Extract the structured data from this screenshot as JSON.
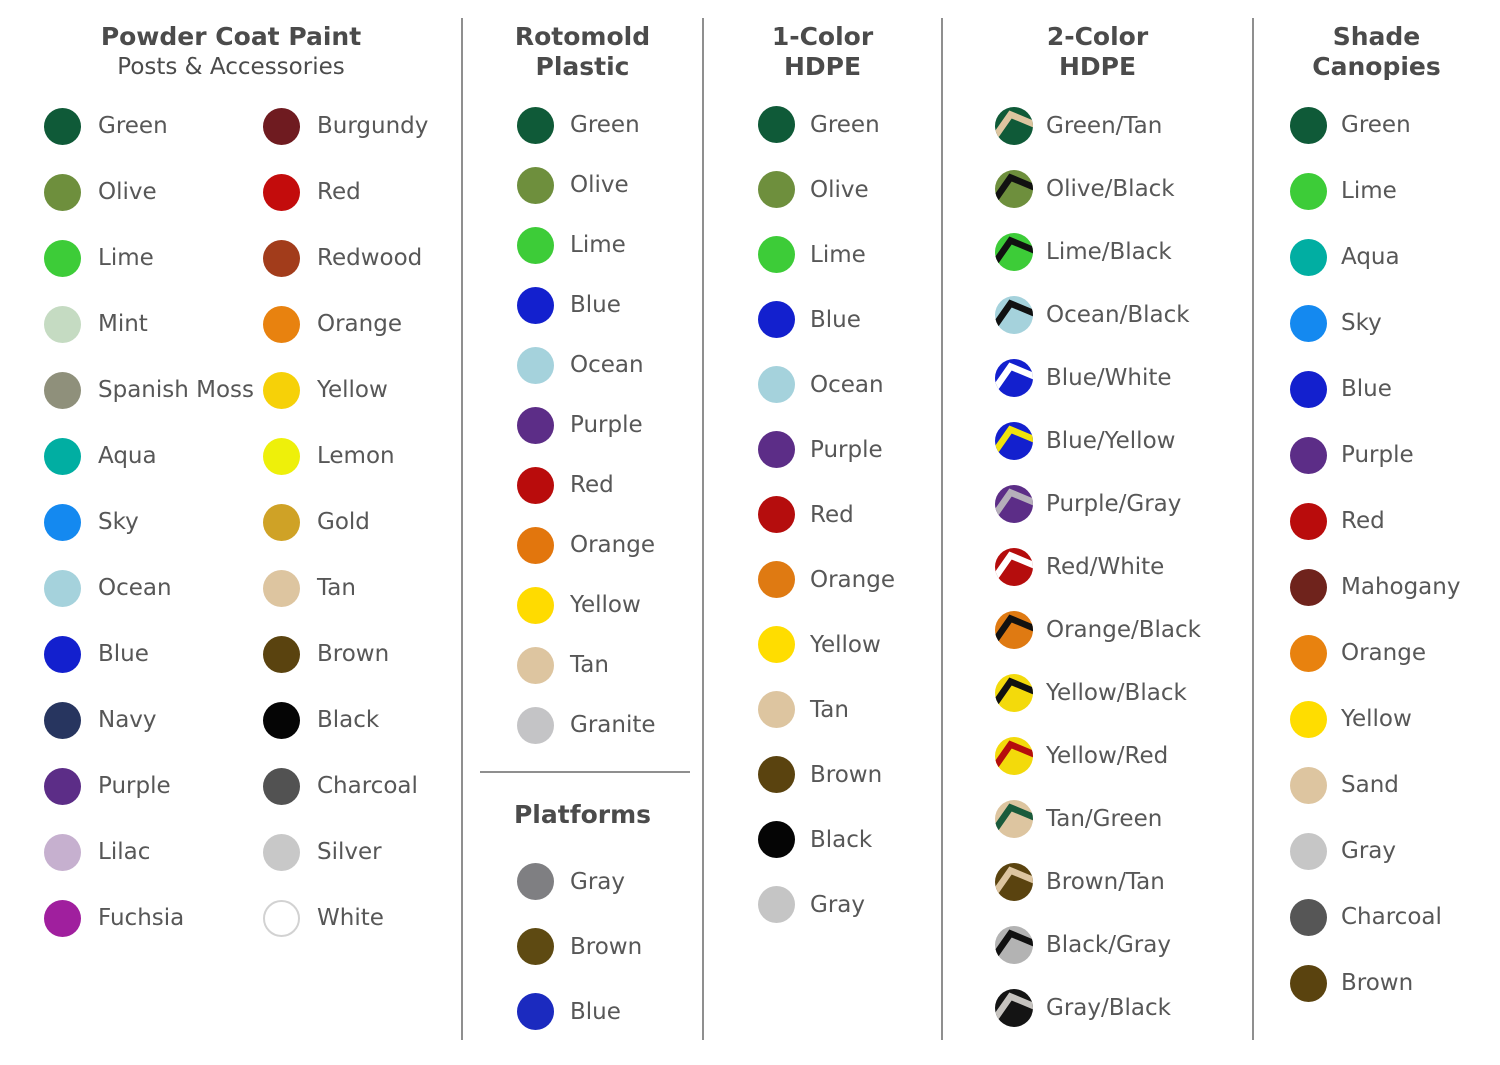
{
  "page": {
    "background": "#ffffff",
    "divider_color": "#8f8f8f",
    "heading_color": "#4b4b4b",
    "label_color": "#575757"
  },
  "sections": {
    "powder": {
      "h1": "Powder Coat Paint",
      "sub": "Posts & Accessories",
      "col_a": [
        {
          "label": "Green",
          "fill": "#0f5a38"
        },
        {
          "label": "Olive",
          "fill": "#6e8f3d"
        },
        {
          "label": "Lime",
          "fill": "#3dcc38"
        },
        {
          "label": "Mint",
          "fill": "#c5dbc2"
        },
        {
          "label": "Spanish Moss",
          "fill": "#8f907b"
        },
        {
          "label": "Aqua",
          "fill": "#01aea2"
        },
        {
          "label": "Sky",
          "fill": "#1489f0"
        },
        {
          "label": "Ocean",
          "fill": "#a5d2dc"
        },
        {
          "label": "Blue",
          "fill": "#1320ce"
        },
        {
          "label": "Navy",
          "fill": "#27355f"
        },
        {
          "label": "Purple",
          "fill": "#5c2d87"
        },
        {
          "label": "Lilac",
          "fill": "#c6b0cf"
        },
        {
          "label": "Fuchsia",
          "fill": "#a01f9e"
        }
      ],
      "col_b": [
        {
          "label": "Burgundy",
          "fill": "#6f1b20"
        },
        {
          "label": "Red",
          "fill": "#c30c0c"
        },
        {
          "label": "Redwood",
          "fill": "#a23c1b"
        },
        {
          "label": "Orange",
          "fill": "#e8820f"
        },
        {
          "label": "Yellow",
          "fill": "#f6d108"
        },
        {
          "label": "Lemon",
          "fill": "#eef00a"
        },
        {
          "label": "Gold",
          "fill": "#cfa226"
        },
        {
          "label": "Tan",
          "fill": "#ddc5a0"
        },
        {
          "label": "Brown",
          "fill": "#5a430f"
        },
        {
          "label": "Black",
          "fill": "#050505"
        },
        {
          "label": "Charcoal",
          "fill": "#525252"
        },
        {
          "label": "Silver",
          "fill": "#c8c8c8"
        },
        {
          "label": "White",
          "fill": "#ffffff",
          "ring": "#d2d2d2"
        }
      ]
    },
    "rotomold": {
      "h1": "Rotomold",
      "h2": "Plastic",
      "swatches": [
        {
          "label": "Green",
          "fill": "#0f5a38"
        },
        {
          "label": "Olive",
          "fill": "#6e8f3d"
        },
        {
          "label": "Lime",
          "fill": "#3dcc38"
        },
        {
          "label": "Blue",
          "fill": "#1320ce"
        },
        {
          "label": "Ocean",
          "fill": "#a5d2dc"
        },
        {
          "label": "Purple",
          "fill": "#5c2d87"
        },
        {
          "label": "Red",
          "fill": "#b90c0c"
        },
        {
          "label": "Orange",
          "fill": "#e2760d"
        },
        {
          "label": "Yellow",
          "fill": "#ffdb00"
        },
        {
          "label": "Tan",
          "fill": "#ddc5a0"
        },
        {
          "label": "Granite",
          "fill": "#c4c4c6"
        }
      ]
    },
    "platforms": {
      "h1": "Platforms",
      "swatches": [
        {
          "label": "Gray",
          "fill": "#7f7f82"
        },
        {
          "label": "Brown",
          "fill": "#5e4a12"
        },
        {
          "label": "Blue",
          "fill": "#1b2abf"
        }
      ]
    },
    "one_color": {
      "h1": "1-Color",
      "h2": "HDPE",
      "swatches": [
        {
          "label": "Green",
          "fill": "#0f5a38"
        },
        {
          "label": "Olive",
          "fill": "#6e8f3d"
        },
        {
          "label": "Lime",
          "fill": "#3dcc38"
        },
        {
          "label": "Blue",
          "fill": "#1320ce"
        },
        {
          "label": "Ocean",
          "fill": "#a5d2dc"
        },
        {
          "label": "Purple",
          "fill": "#5c2d87"
        },
        {
          "label": "Red",
          "fill": "#b50d0d"
        },
        {
          "label": "Orange",
          "fill": "#df7a12"
        },
        {
          "label": "Yellow",
          "fill": "#ffdd00"
        },
        {
          "label": "Tan",
          "fill": "#ddc5a0"
        },
        {
          "label": "Brown",
          "fill": "#5a430f"
        },
        {
          "label": "Black",
          "fill": "#050505"
        },
        {
          "label": "Gray",
          "fill": "#c5c5c5"
        }
      ]
    },
    "two_color": {
      "h1": "2-Color",
      "h2": "HDPE",
      "swatches": [
        {
          "label": "Green/Tan",
          "fill": "#0f5a38",
          "chevron": "#ddc5a0"
        },
        {
          "label": "Olive/Black",
          "fill": "#6e8f3d",
          "chevron": "#111111"
        },
        {
          "label": "Lime/Black",
          "fill": "#3dcc38",
          "chevron": "#111111"
        },
        {
          "label": "Ocean/Black",
          "fill": "#a5d2dc",
          "chevron": "#111111"
        },
        {
          "label": "Blue/White",
          "fill": "#1320ce",
          "chevron": "#ffffff"
        },
        {
          "label": "Blue/Yellow",
          "fill": "#1320ce",
          "chevron": "#f2e30c"
        },
        {
          "label": "Purple/Gray",
          "fill": "#5c2d87",
          "chevron": "#b5afba"
        },
        {
          "label": "Red/White",
          "fill": "#b50d0d",
          "chevron": "#ffffff"
        },
        {
          "label": "Orange/Black",
          "fill": "#df7a12",
          "chevron": "#111111"
        },
        {
          "label": "Yellow/Black",
          "fill": "#f3da0b",
          "chevron": "#111111"
        },
        {
          "label": "Yellow/Red",
          "fill": "#f3da0b",
          "chevron": "#b50d0d"
        },
        {
          "label": "Tan/Green",
          "fill": "#ddc5a0",
          "chevron": "#1a5b3c"
        },
        {
          "label": "Brown/Tan",
          "fill": "#5a430f",
          "chevron": "#ddc5a0"
        },
        {
          "label": "Black/Gray",
          "fill": "#b3b3b3",
          "chevron": "#111111"
        },
        {
          "label": "Gray/Black",
          "fill": "#141414",
          "chevron": "#c6c3bf"
        }
      ]
    },
    "shade": {
      "h1": "Shade",
      "h2": "Canopies",
      "swatches": [
        {
          "label": "Green",
          "fill": "#0f5a38"
        },
        {
          "label": "Lime",
          "fill": "#3dcc38"
        },
        {
          "label": "Aqua",
          "fill": "#01aea2"
        },
        {
          "label": "Sky",
          "fill": "#1489f0"
        },
        {
          "label": "Blue",
          "fill": "#1320ce"
        },
        {
          "label": "Purple",
          "fill": "#5c2d87"
        },
        {
          "label": "Red",
          "fill": "#b90c0c"
        },
        {
          "label": "Mahogany",
          "fill": "#6f231c"
        },
        {
          "label": "Orange",
          "fill": "#e8820f"
        },
        {
          "label": "Yellow",
          "fill": "#ffdd00"
        },
        {
          "label": "Sand",
          "fill": "#ddc5a0"
        },
        {
          "label": "Gray",
          "fill": "#c6c6c6"
        },
        {
          "label": "Charcoal",
          "fill": "#565656"
        },
        {
          "label": "Brown",
          "fill": "#5a430f"
        }
      ]
    }
  }
}
